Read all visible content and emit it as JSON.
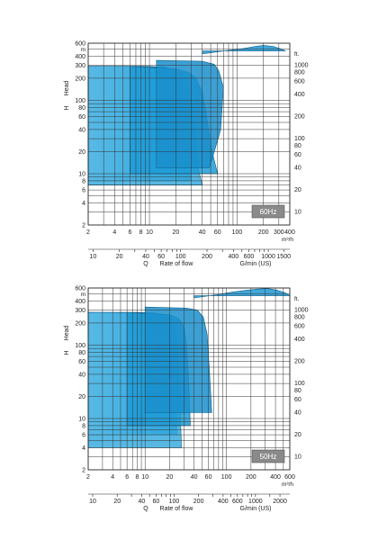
{
  "chart_data": [
    {
      "type": "area",
      "badge": "60Hz",
      "y_left_unit": "m",
      "y_right_unit": "ft.",
      "y_axis_letters": [
        "H",
        "Head"
      ],
      "x_m3_unit": "m³/h",
      "x_q_letter": "Q",
      "x_rate_label": "Rate of flow",
      "x_gpm_unit": "G/min (US)",
      "y_log": true,
      "x_log": true,
      "ylim_m": [
        2,
        600
      ],
      "xlim_m3h": [
        2,
        400
      ],
      "y_left_ticks": [
        "2",
        "4",
        "6",
        "8",
        "10",
        "20",
        "40",
        "60",
        "80",
        "100",
        "200",
        "300",
        "400",
        "600"
      ],
      "y_right_ticks": [
        "10",
        "20",
        "40",
        "60",
        "80",
        "100",
        "200",
        "400",
        "600",
        "800",
        "1000"
      ],
      "x_m3_ticks": [
        "2",
        "4",
        "6",
        "8",
        "10",
        "20",
        "40",
        "60",
        "100",
        "200",
        "300",
        "400"
      ],
      "x_gpm_ticks": [
        "10",
        "20",
        "40",
        "60",
        "100",
        "200",
        "400",
        "600",
        "1000",
        "1500"
      ],
      "series": [
        {
          "x": [
            2,
            8,
            15,
            19,
            22,
            25,
            30
          ],
          "y": [
            290,
            290,
            285,
            250,
            180,
            60,
            8
          ]
        },
        {
          "x": [
            2,
            10,
            18,
            24,
            28,
            32,
            36,
            40
          ],
          "y": [
            290,
            290,
            270,
            230,
            160,
            60,
            12,
            7
          ]
        },
        {
          "x": [
            6,
            20,
            28,
            34,
            40,
            45,
            52,
            60
          ],
          "y": [
            290,
            270,
            240,
            200,
            130,
            60,
            20,
            10
          ]
        },
        {
          "x": [
            12,
            40,
            55,
            62,
            70,
            65,
            55,
            48
          ],
          "y": [
            350,
            340,
            310,
            250,
            150,
            40,
            20,
            12
          ]
        },
        {
          "x": [
            40,
            80,
            120,
            160,
            200,
            260,
            320,
            360
          ],
          "y": [
            430,
            480,
            510,
            540,
            560,
            540,
            500,
            470
          ]
        }
      ]
    },
    {
      "type": "area",
      "badge": "50Hz",
      "y_left_unit": "m",
      "y_right_unit": "ft.",
      "y_axis_letters": [
        "H",
        "Head"
      ],
      "x_m3_unit": "m³/h",
      "x_q_letter": "Q",
      "x_rate_label": "Rate of flow",
      "x_gpm_unit": "G/min (US)",
      "y_log": true,
      "x_log": true,
      "ylim_m": [
        2,
        600
      ],
      "xlim_m3h": [
        2,
        600
      ],
      "y_left_ticks": [
        "2",
        "4",
        "6",
        "8",
        "10",
        "20",
        "40",
        "60",
        "80",
        "100",
        "200",
        "300",
        "400",
        "600"
      ],
      "y_right_ticks": [
        "10",
        "20",
        "40",
        "60",
        "80",
        "100",
        "200",
        "400",
        "600",
        "800",
        "1000"
      ],
      "x_m3_ticks": [
        "2",
        "4",
        "6",
        "8",
        "10",
        "20",
        "40",
        "60",
        "100",
        "200",
        "400",
        "600"
      ],
      "x_gpm_ticks": [
        "10",
        "20",
        "40",
        "60",
        "100",
        "200",
        "400",
        "600",
        "1000",
        "2000"
      ],
      "series": [
        {
          "x": [
            2,
            8,
            14,
            18,
            20,
            22,
            25
          ],
          "y": [
            280,
            280,
            270,
            230,
            160,
            60,
            6
          ]
        },
        {
          "x": [
            2,
            12,
            18,
            22,
            24,
            26,
            28
          ],
          "y": [
            280,
            275,
            260,
            220,
            140,
            50,
            4
          ]
        },
        {
          "x": [
            6,
            20,
            26,
            30,
            32,
            34,
            36
          ],
          "y": [
            280,
            260,
            230,
            180,
            110,
            40,
            8
          ]
        },
        {
          "x": [
            10,
            32,
            44,
            52,
            58,
            62,
            66
          ],
          "y": [
            330,
            320,
            300,
            240,
            140,
            40,
            12
          ]
        },
        {
          "x": [
            40,
            80,
            120,
            180,
            240,
            320,
            420,
            520,
            600
          ],
          "y": [
            440,
            490,
            530,
            560,
            580,
            590,
            560,
            520,
            470
          ]
        }
      ]
    }
  ]
}
